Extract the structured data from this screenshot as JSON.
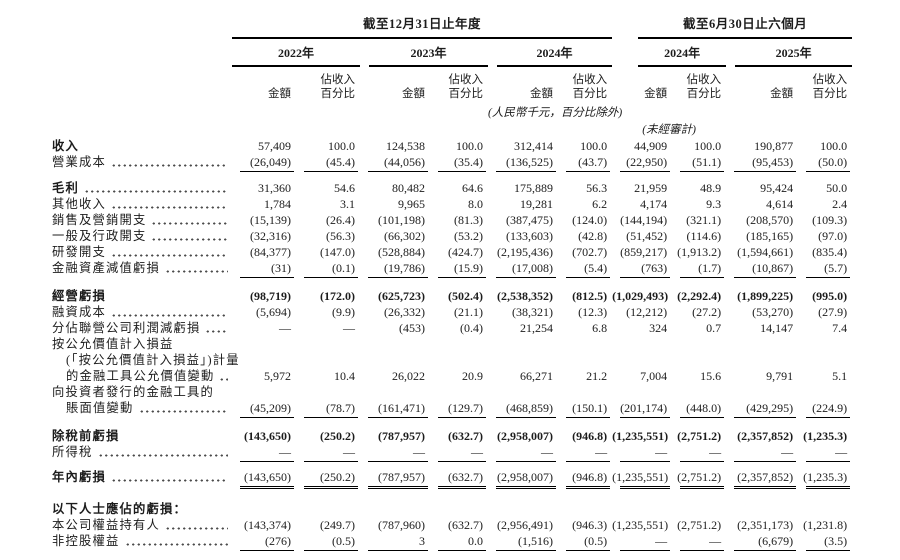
{
  "header": {
    "periods": [
      {
        "label": "截至12月31日止年度"
      },
      {
        "label": "截至6月30日止六個月"
      }
    ],
    "years": [
      "2022年",
      "2023年",
      "2024年",
      "2024年",
      "2025年"
    ],
    "col_labels": {
      "amount": "金額",
      "pct1": "佔收入",
      "pct2": "百分比"
    },
    "notes": {
      "currency": "(人民幣千元，百分比除外)",
      "unaudited": "(未經審計)"
    }
  },
  "table": {
    "rows": [
      {
        "label": "收入",
        "b": 1,
        "bv": 0,
        "dots": 0,
        "ind": 0,
        "sp": 0,
        "rule": "",
        "v": [
          "57,409",
          "100.0",
          "124,538",
          "100.0",
          "312,414",
          "100.0",
          "44,909",
          "100.0",
          "190,877",
          "100.0"
        ]
      },
      {
        "label": "營業成本",
        "b": 0,
        "bv": 0,
        "dots": 1,
        "ind": 0,
        "sp": 0,
        "rule": "s",
        "v": [
          "(26,049)",
          "(45.4)",
          "(44,056)",
          "(35.4)",
          "(136,525)",
          "(43.7)",
          "(22,950)",
          "(51.1)",
          "(95,453)",
          "(50.0)"
        ]
      },
      {
        "label": "毛利",
        "b": 1,
        "bv": 0,
        "dots": 1,
        "ind": 0,
        "sp": 6,
        "rule": "",
        "v": [
          "31,360",
          "54.6",
          "80,482",
          "64.6",
          "175,889",
          "56.3",
          "21,959",
          "48.9",
          "95,424",
          "50.0"
        ]
      },
      {
        "label": "其他收入",
        "b": 0,
        "bv": 0,
        "dots": 1,
        "ind": 0,
        "sp": 0,
        "rule": "",
        "v": [
          "1,784",
          "3.1",
          "9,965",
          "8.0",
          "19,281",
          "6.2",
          "4,174",
          "9.3",
          "4,614",
          "2.4"
        ]
      },
      {
        "label": "銷售及營銷開支",
        "b": 0,
        "bv": 0,
        "dots": 1,
        "ind": 0,
        "sp": 0,
        "rule": "",
        "v": [
          "(15,139)",
          "(26.4)",
          "(101,198)",
          "(81.3)",
          "(387,475)",
          "(124.0)",
          "(144,194)",
          "(321.1)",
          "(208,570)",
          "(109.3)"
        ]
      },
      {
        "label": "一般及行政開支",
        "b": 0,
        "bv": 0,
        "dots": 1,
        "ind": 0,
        "sp": 0,
        "rule": "",
        "v": [
          "(32,316)",
          "(56.3)",
          "(66,302)",
          "(53.2)",
          "(133,603)",
          "(42.8)",
          "(51,452)",
          "(114.6)",
          "(185,165)",
          "(97.0)"
        ]
      },
      {
        "label": "研發開支",
        "b": 0,
        "bv": 0,
        "dots": 1,
        "ind": 0,
        "sp": 0,
        "rule": "",
        "v": [
          "(84,377)",
          "(147.0)",
          "(528,884)",
          "(424.7)",
          "(2,195,436)",
          "(702.7)",
          "(859,217)",
          "(1,913.2)",
          "(1,594,661)",
          "(835.4)"
        ]
      },
      {
        "label": "金融資產減值虧損",
        "b": 0,
        "bv": 0,
        "dots": 1,
        "ind": 0,
        "sp": 0,
        "rule": "s",
        "v": [
          "(31)",
          "(0.1)",
          "(19,786)",
          "(15.9)",
          "(17,008)",
          "(5.4)",
          "(763)",
          "(1.7)",
          "(10,867)",
          "(5.7)"
        ]
      },
      {
        "label": "經營虧損",
        "b": 1,
        "bv": 1,
        "dots": 0,
        "ind": 0,
        "sp": 8,
        "rule": "",
        "v": [
          "(98,719)",
          "(172.0)",
          "(625,723)",
          "(502.4)",
          "(2,538,352)",
          "(812.5)",
          "(1,029,493)",
          "(2,292.4)",
          "(1,899,225)",
          "(995.0)"
        ]
      },
      {
        "label": "融資成本",
        "b": 0,
        "bv": 0,
        "dots": 1,
        "ind": 0,
        "sp": 0,
        "rule": "",
        "v": [
          "(5,694)",
          "(9.9)",
          "(26,332)",
          "(21.1)",
          "(38,321)",
          "(12.3)",
          "(12,212)",
          "(27.2)",
          "(53,270)",
          "(27.9)"
        ]
      },
      {
        "label": "分佔聯營公司利潤減虧損",
        "b": 0,
        "bv": 0,
        "dots": 1,
        "ind": 0,
        "sp": 0,
        "rule": "",
        "v": [
          "—",
          "—",
          "(453)",
          "(0.4)",
          "21,254",
          "6.8",
          "324",
          "0.7",
          "14,147",
          "7.4"
        ]
      },
      {
        "label": "按公允價值計入損益",
        "b": 0,
        "bv": 0,
        "dots": 0,
        "ind": 0,
        "sp": 0,
        "rule": "",
        "v": null
      },
      {
        "label": "(「按公允價值計入損益」)計量",
        "b": 0,
        "bv": 0,
        "dots": 0,
        "ind": 1,
        "sp": 0,
        "rule": "",
        "v": null
      },
      {
        "label": "的金融工具公允價值變動",
        "b": 0,
        "bv": 0,
        "dots": 1,
        "ind": 1,
        "sp": 0,
        "rule": "",
        "v": [
          "5,972",
          "10.4",
          "26,022",
          "20.9",
          "66,271",
          "21.2",
          "7,004",
          "15.6",
          "9,791",
          "5.1"
        ]
      },
      {
        "label": "向投資者發行的金融工具的",
        "b": 0,
        "bv": 0,
        "dots": 0,
        "ind": 0,
        "sp": 0,
        "rule": "",
        "v": null
      },
      {
        "label": "賬面值變動",
        "b": 0,
        "bv": 0,
        "dots": 1,
        "ind": 1,
        "sp": 0,
        "rule": "s",
        "v": [
          "(45,209)",
          "(78.7)",
          "(161,471)",
          "(129.7)",
          "(468,859)",
          "(150.1)",
          "(201,174)",
          "(448.0)",
          "(429,295)",
          "(224.9)"
        ]
      },
      {
        "label": "除稅前虧損",
        "b": 1,
        "bv": 1,
        "dots": 0,
        "ind": 0,
        "sp": 8,
        "rule": "",
        "v": [
          "(143,650)",
          "(250.2)",
          "(787,957)",
          "(632.7)",
          "(2,958,007)",
          "(946.8)",
          "(1,235,551)",
          "(2,751.2)",
          "(2,357,852)",
          "(1,235.3)"
        ]
      },
      {
        "label": "所得稅",
        "b": 0,
        "bv": 0,
        "dots": 1,
        "ind": 0,
        "sp": 0,
        "rule": "s",
        "v": [
          "—",
          "—",
          "—",
          "—",
          "—",
          "—",
          "—",
          "—",
          "—",
          "—"
        ]
      },
      {
        "label": "年內虧損",
        "b": 1,
        "bv": 0,
        "dots": 1,
        "ind": 0,
        "sp": 5,
        "rule": "d",
        "v": [
          "(143,650)",
          "(250.2)",
          "(787,957)",
          "(632.7)",
          "(2,958,007)",
          "(946.8)",
          "(1,235,551)",
          "(2,751.2)",
          "(2,357,852)",
          "(1,235.3)"
        ]
      },
      {
        "label": "以下人士應佔的虧損：",
        "b": 1,
        "bv": 0,
        "dots": 0,
        "ind": 0,
        "sp": 12,
        "rule": "",
        "v": null
      },
      {
        "label": "本公司權益持有人",
        "b": 0,
        "bv": 0,
        "dots": 1,
        "ind": 0,
        "sp": 0,
        "rule": "",
        "v": [
          "(143,374)",
          "(249.7)",
          "(787,960)",
          "(632.7)",
          "(2,956,491)",
          "(946.3)",
          "(1,235,551)",
          "(2,751.2)",
          "(2,351,173)",
          "(1,231.8)"
        ]
      },
      {
        "label": "非控股權益",
        "b": 0,
        "bv": 0,
        "dots": 1,
        "ind": 0,
        "sp": 0,
        "rule": "s",
        "v": [
          "(276)",
          "(0.5)",
          "3",
          "0.0",
          "(1,516)",
          "(0.5)",
          "—",
          "—",
          "(6,679)",
          "(3.5)"
        ]
      }
    ]
  }
}
